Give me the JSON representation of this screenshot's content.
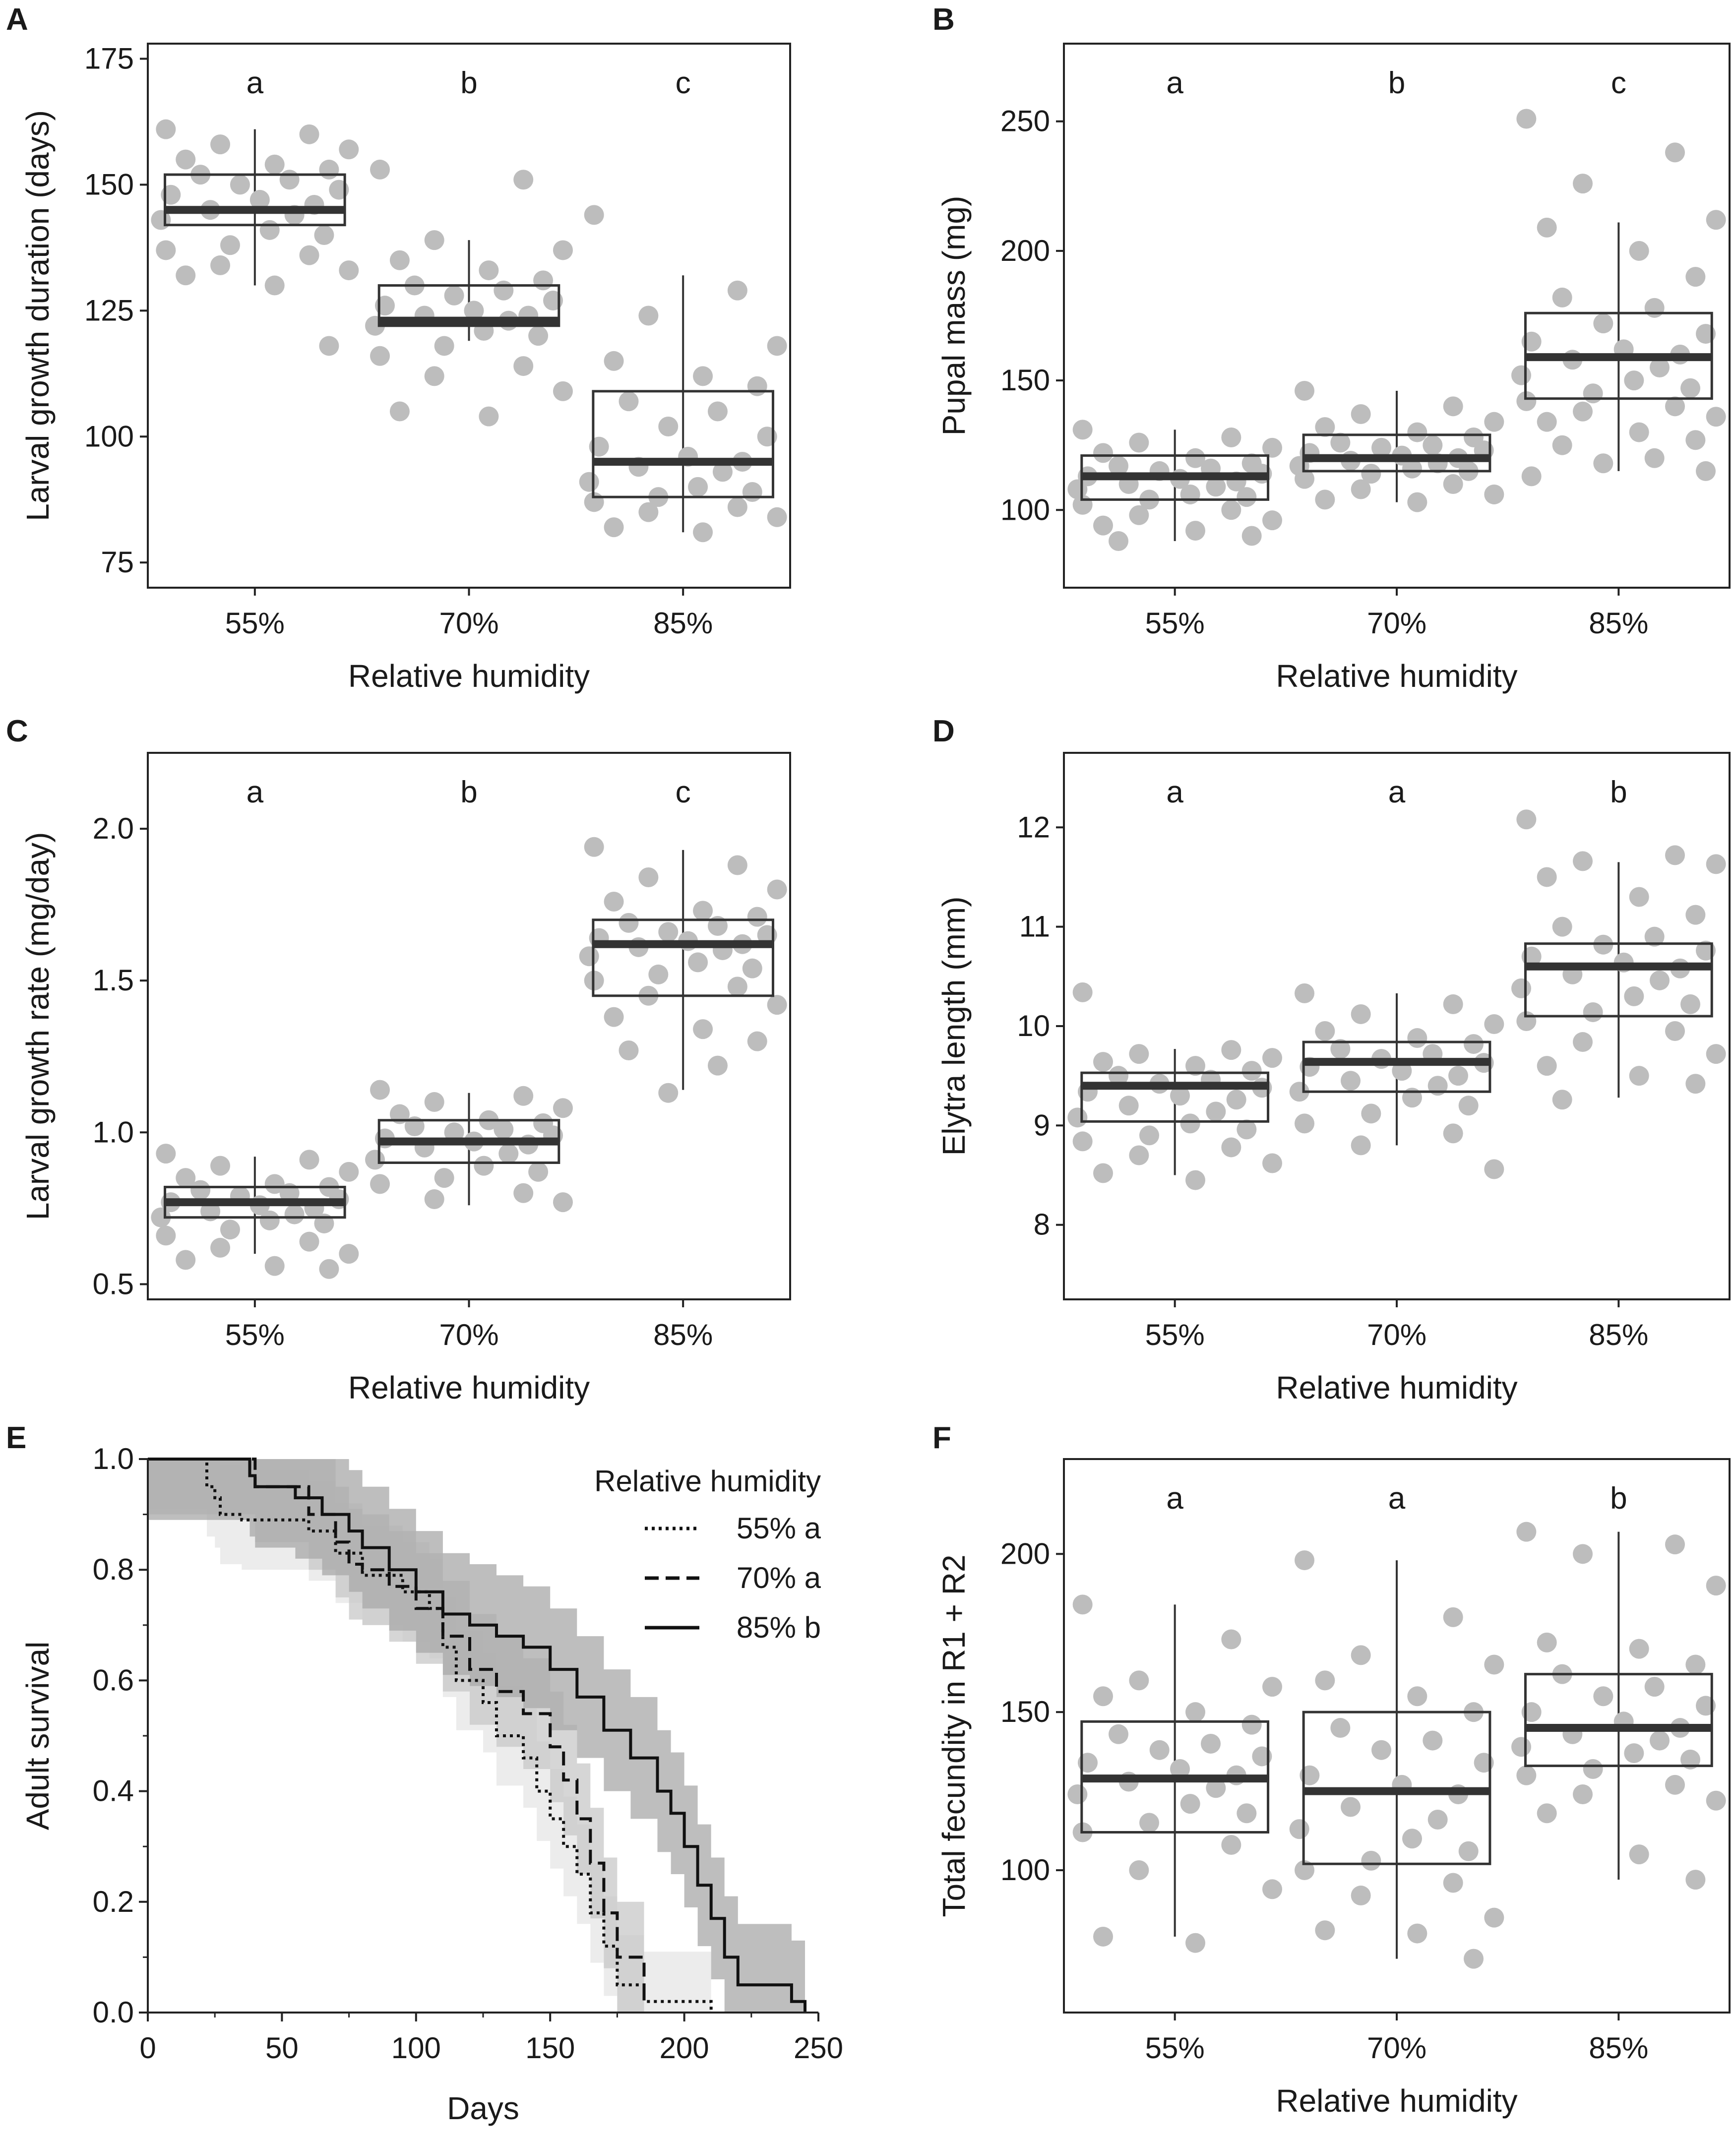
{
  "colors": {
    "point": "#bdbdbd",
    "box_stroke": "#333333",
    "median": "#333333",
    "axis": "#222222",
    "text": "#1a1a1a",
    "band_55": "#e6e6e6",
    "band_70": "#c8c8c8",
    "band_85": "#a8a8a8"
  },
  "chart_data": [
    {
      "panel": "A",
      "type": "box",
      "xlabel": "Relative humidity",
      "ylabel": "Larval growth duration (days)",
      "categories": [
        "55%",
        "70%",
        "85%"
      ],
      "ylim": [
        70,
        178
      ],
      "yticks": [
        75,
        100,
        125,
        150,
        175
      ],
      "sig_letters": [
        "a",
        "b",
        "c"
      ],
      "boxes": [
        {
          "q1": 142,
          "median": 145,
          "q3": 152,
          "whisker_low": 130,
          "whisker_high": 161
        },
        {
          "q1": 122,
          "median": 123,
          "q3": 130,
          "whisker_low": 119,
          "whisker_high": 139
        },
        {
          "q1": 88,
          "median": 95,
          "q3": 109,
          "whisker_low": 81,
          "whisker_high": 132
        }
      ],
      "points": [
        [
          161,
          160,
          158,
          157,
          155,
          154,
          153,
          152,
          151,
          150,
          149,
          148,
          147,
          146,
          145,
          144,
          143,
          141,
          140,
          138,
          137,
          136,
          134,
          133,
          132,
          130,
          118
        ],
        [
          153,
          151,
          139,
          137,
          135,
          133,
          131,
          130,
          129,
          128,
          127,
          126,
          125,
          124,
          124,
          123,
          122,
          121,
          120,
          118,
          116,
          114,
          112,
          109,
          105,
          104
        ],
        [
          144,
          129,
          124,
          118,
          115,
          112,
          110,
          107,
          105,
          102,
          100,
          98,
          96,
          95,
          94,
          93,
          91,
          90,
          89,
          88,
          87,
          86,
          85,
          84,
          82,
          81
        ]
      ]
    },
    {
      "panel": "B",
      "type": "box",
      "xlabel": "Relative humidity",
      "ylabel": "Pupal mass (mg)",
      "categories": [
        "55%",
        "70%",
        "85%"
      ],
      "ylim": [
        70,
        280
      ],
      "yticks": [
        100,
        150,
        200,
        250
      ],
      "sig_letters": [
        "a",
        "b",
        "c"
      ],
      "boxes": [
        {
          "q1": 104,
          "median": 113,
          "q3": 121,
          "whisker_low": 88,
          "whisker_high": 131
        },
        {
          "q1": 115,
          "median": 120,
          "q3": 129,
          "whisker_low": 103,
          "whisker_high": 146
        },
        {
          "q1": 143,
          "median": 159,
          "q3": 176,
          "whisker_low": 115,
          "whisker_high": 211
        }
      ],
      "points": [
        [
          131,
          128,
          126,
          124,
          122,
          120,
          118,
          117,
          116,
          115,
          114,
          113,
          112,
          111,
          110,
          109,
          108,
          106,
          105,
          104,
          102,
          100,
          98,
          96,
          94,
          92,
          90,
          88
        ],
        [
          146,
          140,
          137,
          134,
          132,
          130,
          128,
          126,
          125,
          124,
          123,
          122,
          121,
          120,
          119,
          118,
          117,
          116,
          115,
          114,
          112,
          110,
          108,
          106,
          104,
          103
        ],
        [
          251,
          238,
          226,
          212,
          209,
          200,
          190,
          182,
          178,
          172,
          168,
          165,
          162,
          160,
          158,
          155,
          152,
          150,
          147,
          145,
          142,
          140,
          138,
          136,
          134,
          130,
          127,
          125,
          120,
          118,
          115,
          113
        ]
      ]
    },
    {
      "panel": "C",
      "type": "box",
      "xlabel": "Relative humidity",
      "ylabel": "Larval growth rate (mg/day)",
      "categories": [
        "55%",
        "70%",
        "85%"
      ],
      "ylim": [
        0.45,
        2.25
      ],
      "yticks": [
        0.5,
        1.0,
        1.5,
        2.0
      ],
      "ytick_labels": [
        "0.5",
        "1.0",
        "1.5",
        "2.0"
      ],
      "sig_letters": [
        "a",
        "b",
        "c"
      ],
      "boxes": [
        {
          "q1": 0.72,
          "median": 0.77,
          "q3": 0.82,
          "whisker_low": 0.6,
          "whisker_high": 0.92
        },
        {
          "q1": 0.9,
          "median": 0.97,
          "q3": 1.04,
          "whisker_low": 0.76,
          "whisker_high": 1.13
        },
        {
          "q1": 1.45,
          "median": 1.62,
          "q3": 1.7,
          "whisker_low": 1.14,
          "whisker_high": 1.93
        }
      ],
      "points": [
        [
          0.93,
          0.91,
          0.89,
          0.87,
          0.85,
          0.83,
          0.82,
          0.81,
          0.8,
          0.79,
          0.78,
          0.77,
          0.76,
          0.75,
          0.74,
          0.73,
          0.72,
          0.71,
          0.7,
          0.68,
          0.66,
          0.64,
          0.62,
          0.6,
          0.58,
          0.56,
          0.55
        ],
        [
          1.14,
          1.12,
          1.1,
          1.08,
          1.06,
          1.04,
          1.03,
          1.02,
          1.01,
          1.0,
          0.99,
          0.98,
          0.97,
          0.96,
          0.95,
          0.93,
          0.91,
          0.89,
          0.87,
          0.85,
          0.83,
          0.8,
          0.78,
          0.77
        ],
        [
          1.94,
          1.88,
          1.84,
          1.8,
          1.76,
          1.73,
          1.71,
          1.69,
          1.68,
          1.66,
          1.65,
          1.64,
          1.63,
          1.62,
          1.61,
          1.6,
          1.58,
          1.56,
          1.54,
          1.52,
          1.5,
          1.48,
          1.45,
          1.42,
          1.38,
          1.34,
          1.3,
          1.27,
          1.22,
          1.13
        ]
      ]
    },
    {
      "panel": "D",
      "type": "box",
      "xlabel": "Relative humidity",
      "ylabel": "Elytra length (mm)",
      "categories": [
        "55%",
        "70%",
        "85%"
      ],
      "ylim": [
        7.25,
        12.75
      ],
      "yticks": [
        8,
        9,
        10,
        11,
        12
      ],
      "sig_letters": [
        "a",
        "a",
        "b"
      ],
      "boxes": [
        {
          "q1": 9.04,
          "median": 9.4,
          "q3": 9.53,
          "whisker_low": 8.5,
          "whisker_high": 9.77
        },
        {
          "q1": 9.34,
          "median": 9.64,
          "q3": 9.84,
          "whisker_low": 8.8,
          "whisker_high": 10.33
        },
        {
          "q1": 10.1,
          "median": 10.6,
          "q3": 10.83,
          "whisker_low": 9.28,
          "whisker_high": 11.65
        }
      ],
      "points": [
        [
          10.34,
          9.76,
          9.72,
          9.68,
          9.64,
          9.6,
          9.55,
          9.5,
          9.46,
          9.42,
          9.38,
          9.34,
          9.3,
          9.26,
          9.2,
          9.14,
          9.08,
          9.02,
          8.96,
          8.9,
          8.84,
          8.78,
          8.7,
          8.62,
          8.52,
          8.45
        ],
        [
          10.33,
          10.22,
          10.12,
          10.02,
          9.95,
          9.88,
          9.82,
          9.77,
          9.72,
          9.67,
          9.63,
          9.59,
          9.55,
          9.5,
          9.45,
          9.4,
          9.34,
          9.28,
          9.2,
          9.12,
          9.02,
          8.92,
          8.8,
          8.56
        ],
        [
          12.08,
          11.72,
          11.66,
          11.63,
          11.5,
          11.3,
          11.12,
          11.0,
          10.9,
          10.82,
          10.76,
          10.7,
          10.64,
          10.58,
          10.52,
          10.46,
          10.38,
          10.3,
          10.22,
          10.14,
          10.05,
          9.95,
          9.84,
          9.72,
          9.6,
          9.5,
          9.42,
          9.26
        ]
      ]
    },
    {
      "panel": "E",
      "type": "line",
      "subtype": "step",
      "xlabel": "Days",
      "ylabel": "Adult survival",
      "xlim": [
        0,
        250
      ],
      "ylim": [
        0,
        1.0
      ],
      "xticks": [
        0,
        50,
        100,
        150,
        200,
        250
      ],
      "yticks": [
        0.0,
        0.2,
        0.4,
        0.6,
        0.8,
        1.0
      ],
      "ytick_labels": [
        "0.0",
        "0.2",
        "0.4",
        "0.6",
        "0.8",
        "1.0"
      ],
      "legend_title": "Relative humidity",
      "legend_position": "top-right",
      "series": [
        {
          "name": "55% a",
          "style": "dotted",
          "x": [
            0,
            22,
            25,
            27,
            35,
            60,
            70,
            80,
            95,
            105,
            110,
            115,
            125,
            130,
            140,
            145,
            150,
            155,
            160,
            165,
            170,
            175,
            185,
            210
          ],
          "y": [
            1.0,
            0.95,
            0.93,
            0.9,
            0.89,
            0.87,
            0.83,
            0.79,
            0.76,
            0.73,
            0.66,
            0.6,
            0.56,
            0.5,
            0.46,
            0.4,
            0.35,
            0.3,
            0.25,
            0.18,
            0.12,
            0.05,
            0.02,
            0.0
          ]
        },
        {
          "name": "70% a",
          "style": "dashed",
          "x": [
            0,
            40,
            60,
            70,
            75,
            80,
            90,
            100,
            110,
            120,
            130,
            140,
            150,
            155,
            160,
            165,
            170,
            175,
            185
          ],
          "y": [
            1.0,
            0.95,
            0.9,
            0.85,
            0.81,
            0.8,
            0.77,
            0.73,
            0.68,
            0.62,
            0.58,
            0.54,
            0.48,
            0.42,
            0.35,
            0.27,
            0.18,
            0.1,
            0.02
          ]
        },
        {
          "name": "85% b",
          "style": "solid",
          "x": [
            0,
            38,
            40,
            55,
            65,
            75,
            80,
            90,
            100,
            110,
            120,
            130,
            140,
            150,
            160,
            170,
            180,
            190,
            195,
            200,
            205,
            210,
            215,
            220,
            240,
            245
          ],
          "y": [
            1.0,
            0.97,
            0.95,
            0.93,
            0.9,
            0.87,
            0.84,
            0.8,
            0.76,
            0.72,
            0.7,
            0.68,
            0.66,
            0.62,
            0.57,
            0.51,
            0.46,
            0.4,
            0.36,
            0.3,
            0.23,
            0.17,
            0.1,
            0.05,
            0.02,
            0.0
          ]
        }
      ]
    },
    {
      "panel": "F",
      "type": "box",
      "xlabel": "Relative humidity",
      "ylabel": "Total fecundity in R1 + R2",
      "categories": [
        "55%",
        "70%",
        "85%"
      ],
      "ylim": [
        55,
        230
      ],
      "yticks": [
        100,
        150,
        200
      ],
      "sig_letters": [
        "a",
        "a",
        "b"
      ],
      "boxes": [
        {
          "q1": 112,
          "median": 129,
          "q3": 147,
          "whisker_low": 79,
          "whisker_high": 184
        },
        {
          "q1": 102,
          "median": 125,
          "q3": 150,
          "whisker_low": 72,
          "whisker_high": 198
        },
        {
          "q1": 133,
          "median": 145,
          "q3": 162,
          "whisker_low": 97,
          "whisker_high": 207
        }
      ],
      "points": [
        [
          184,
          173,
          160,
          158,
          155,
          150,
          146,
          143,
          140,
          138,
          136,
          134,
          132,
          130,
          128,
          126,
          124,
          121,
          118,
          115,
          112,
          108,
          100,
          94,
          79,
          77
        ],
        [
          198,
          180,
          168,
          165,
          160,
          155,
          150,
          145,
          141,
          138,
          134,
          130,
          127,
          124,
          120,
          116,
          113,
          110,
          106,
          103,
          100,
          96,
          92,
          85,
          81,
          80,
          72
        ],
        [
          207,
          203,
          200,
          190,
          172,
          170,
          165,
          162,
          158,
          155,
          152,
          150,
          147,
          145,
          143,
          141,
          139,
          137,
          135,
          132,
          130,
          127,
          124,
          122,
          118,
          105,
          97
        ]
      ]
    }
  ]
}
